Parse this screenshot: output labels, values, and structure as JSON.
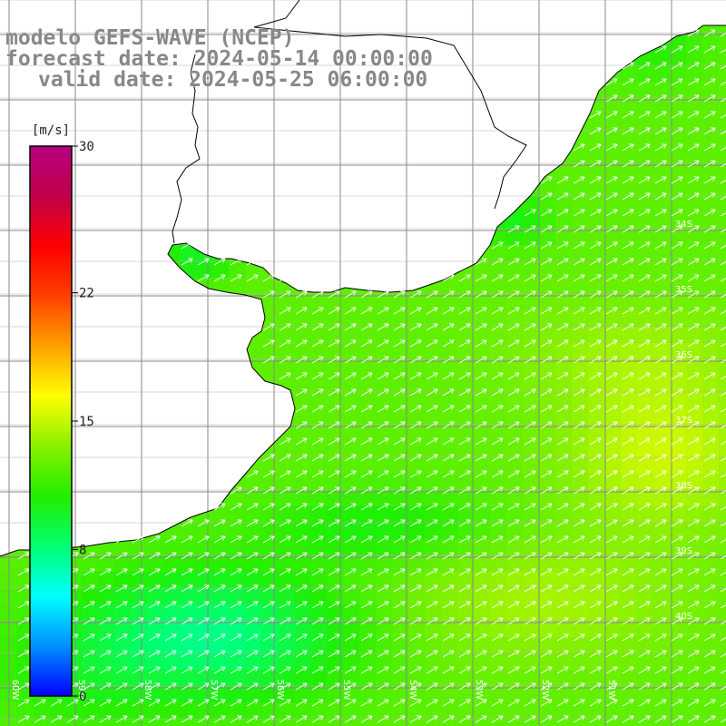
{
  "header": {
    "model_line": "modelo GEFS-WAVE (NCEP)",
    "forecast_line": "forecast date: 2024-05-14 00:00:00",
    "valid_line": "valid date: 2024-05-25 06:00:00"
  },
  "colorbar": {
    "unit": "[m/s]",
    "ticks": [
      {
        "value": 30,
        "label": "30"
      },
      {
        "value": 22,
        "label": "22"
      },
      {
        "value": 15,
        "label": "15"
      },
      {
        "value": 8,
        "label": "8"
      },
      {
        "value": 0,
        "label": "0"
      }
    ],
    "min": 0,
    "max": 30,
    "colors": [
      "#0000ff",
      "#0090ff",
      "#00ffff",
      "#00ff70",
      "#22ee00",
      "#88f000",
      "#ffff00",
      "#ffa000",
      "#ff4000",
      "#ff0000",
      "#c0004a",
      "#b80080"
    ]
  },
  "map": {
    "lat_labels": [
      "34S",
      "35S",
      "36S",
      "37S",
      "38S",
      "39S",
      "40S"
    ],
    "lon_labels": [
      "60W",
      "59W",
      "58W",
      "57W",
      "56W",
      "55W",
      "54W",
      "53W",
      "52W",
      "51W"
    ],
    "land_color": "#ffffff",
    "grid_color": "#888888",
    "coast_color": "#000000"
  }
}
